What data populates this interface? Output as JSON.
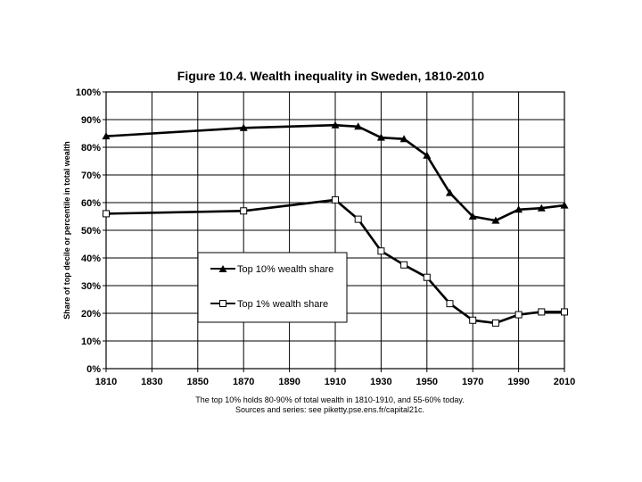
{
  "chart_data": {
    "type": "line",
    "title": "Figure 10.4. Wealth inequality in Sweden, 1810-2010",
    "xlabel": "",
    "ylabel": "Share of top decile or percentile in total wealth",
    "xlim": [
      1810,
      2010
    ],
    "ylim": [
      0,
      100
    ],
    "x_ticks": [
      "1810",
      "1830",
      "1850",
      "1870",
      "1890",
      "1910",
      "1930",
      "1950",
      "1970",
      "1990",
      "2010"
    ],
    "y_ticks": [
      "0%",
      "10%",
      "20%",
      "30%",
      "40%",
      "50%",
      "60%",
      "70%",
      "80%",
      "90%",
      "100%"
    ],
    "grid": true,
    "legend_position": "center-left",
    "series": [
      {
        "name": "Top 10% wealth share",
        "marker": "filled-triangle",
        "x": [
          1810,
          1870,
          1910,
          1920,
          1930,
          1940,
          1950,
          1960,
          1970,
          1980,
          1990,
          2000,
          2010
        ],
        "values": [
          84.0,
          87.0,
          88.0,
          87.5,
          83.5,
          83.0,
          77.0,
          63.5,
          55.0,
          53.5,
          57.5,
          58.0,
          59.0
        ]
      },
      {
        "name": "Top 1% wealth share",
        "marker": "open-square",
        "x": [
          1810,
          1870,
          1910,
          1920,
          1930,
          1940,
          1950,
          1960,
          1970,
          1980,
          1990,
          2000,
          2010
        ],
        "values": [
          56.0,
          57.0,
          61.0,
          54.0,
          42.5,
          37.5,
          33.0,
          23.5,
          17.5,
          16.5,
          19.5,
          20.5,
          20.5
        ]
      }
    ],
    "footnote_1": "The top 10% holds 80-90% of total wealth in 1810-1910, and 55-60% today.",
    "footnote_2": "Sources and series: see piketty.pse.ens.fr/capital21c."
  }
}
